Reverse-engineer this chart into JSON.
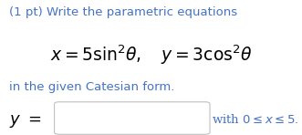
{
  "line1": "(1 pt) Write the parametric equations",
  "line1_color": "#4472C4",
  "eq_line": "$x = 5\\sin^2\\!\\theta,\\quad y = 3\\cos^2\\!\\theta$",
  "eq_color": "#000000",
  "eq_fontsize": 13.5,
  "line3": "in the given Catesian form.",
  "line3_color": "#4472C4",
  "line3_fontsize": 9.5,
  "ylabel": "$y\\ =$",
  "ylabel_color": "#000000",
  "ylabel_fontsize": 13,
  "suffix": "with $0 \\leq x \\leq 5.$",
  "suffix_color": "#4472C4",
  "suffix_fontsize": 9.5,
  "line1_fontsize": 9.5,
  "background_color": "#ffffff",
  "fig_width": 3.31,
  "fig_height": 1.48,
  "dpi": 100
}
